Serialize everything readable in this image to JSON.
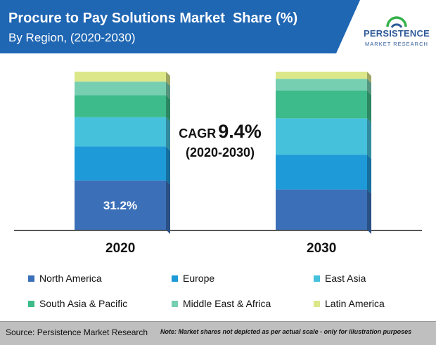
{
  "header": {
    "title": "Procure to Pay Solutions Market  Share (%)",
    "subtitle": "By Region, (2020-2030)"
  },
  "logo": {
    "name": "PERSISTENCE",
    "sub": "MARKET RESEARCH"
  },
  "cagr": {
    "label": "CAGR",
    "value": "9.4%",
    "period": "(2020-2030)"
  },
  "colors": {
    "north_america": "#3b6fb8",
    "europe": "#1e9ad9",
    "east_asia": "#45c1dc",
    "south_asia_pacific": "#3dbb8a",
    "middle_east_africa": "#76cfb1",
    "latin_america": "#dce78a"
  },
  "chart_data": {
    "type": "bar",
    "stacked": true,
    "categories": [
      "2020",
      "2030"
    ],
    "series": [
      {
        "name": "North America",
        "values": [
          31.2,
          25.5
        ],
        "color": "#3b6fb8"
      },
      {
        "name": "Europe",
        "values": [
          21.5,
          22.0
        ],
        "color": "#1e9ad9"
      },
      {
        "name": "East Asia",
        "values": [
          18.5,
          23.0
        ],
        "color": "#45c1dc"
      },
      {
        "name": "South Asia & Pacific",
        "values": [
          14.0,
          17.5
        ],
        "color": "#3dbb8a"
      },
      {
        "name": "Middle East & Africa",
        "values": [
          8.5,
          7.5
        ],
        "color": "#76cfb1"
      },
      {
        "name": "Latin America",
        "values": [
          6.3,
          4.5
        ],
        "color": "#dce78a"
      }
    ],
    "data_labels": [
      "31.2%"
    ],
    "ylim": [
      0,
      100
    ],
    "legend_position": "bottom",
    "grid": false
  },
  "footer": {
    "source": "Source: Persistence Market Research",
    "note": "Note: Market shares not depicted as per actual scale - only for illustration purposes"
  }
}
